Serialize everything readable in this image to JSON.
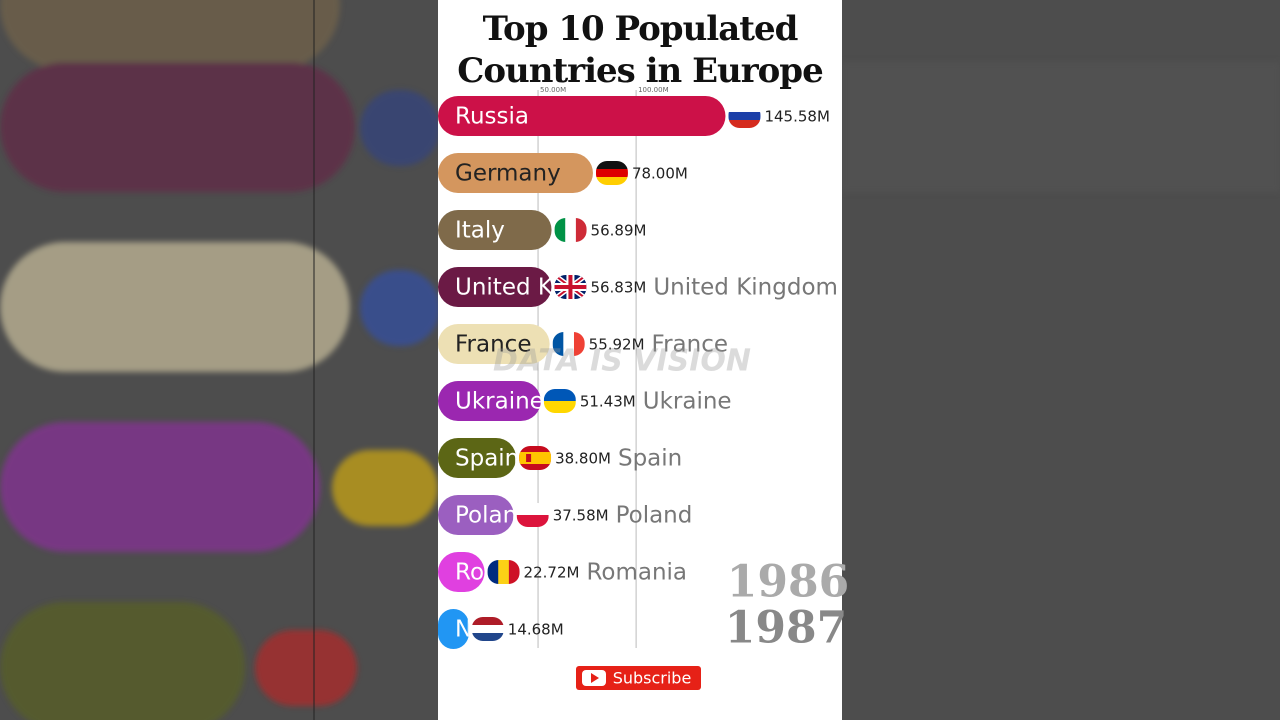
{
  "chart_data": {
    "type": "bar",
    "orientation": "horizontal",
    "title": "Top 10 Populated Countries in Europe",
    "categories": [
      "Russia",
      "Germany",
      "Italy",
      "United Kingdom",
      "France",
      "Ukraine",
      "Spain",
      "Poland",
      "Romania",
      "N"
    ],
    "values": [
      145.58,
      78.0,
      56.89,
      56.83,
      55.92,
      51.43,
      38.8,
      37.58,
      22.72,
      14.68
    ],
    "value_labels": [
      "145.58M",
      "78.00M",
      "56.89M",
      "56.83M",
      "55.92M",
      "51.43M",
      "38.80M",
      "37.58M",
      "22.72M",
      "14.68M"
    ],
    "colors": [
      "#cc1148",
      "#d4965e",
      "#7f6a4a",
      "#6b1a45",
      "#ede0b4",
      "#9b27b0",
      "#5c6615",
      "#9b5fc0",
      "#e040e0",
      "#2196f3"
    ],
    "xlim": [
      0,
      205
    ],
    "xticks": [
      {
        "value": 50,
        "label": "50.00M"
      },
      {
        "value": 100,
        "label": "100.00M"
      }
    ],
    "grid": true,
    "annotations": [
      "1986",
      "1987"
    ],
    "watermark": "DATA IS VISION",
    "button": "Subscribe"
  }
}
